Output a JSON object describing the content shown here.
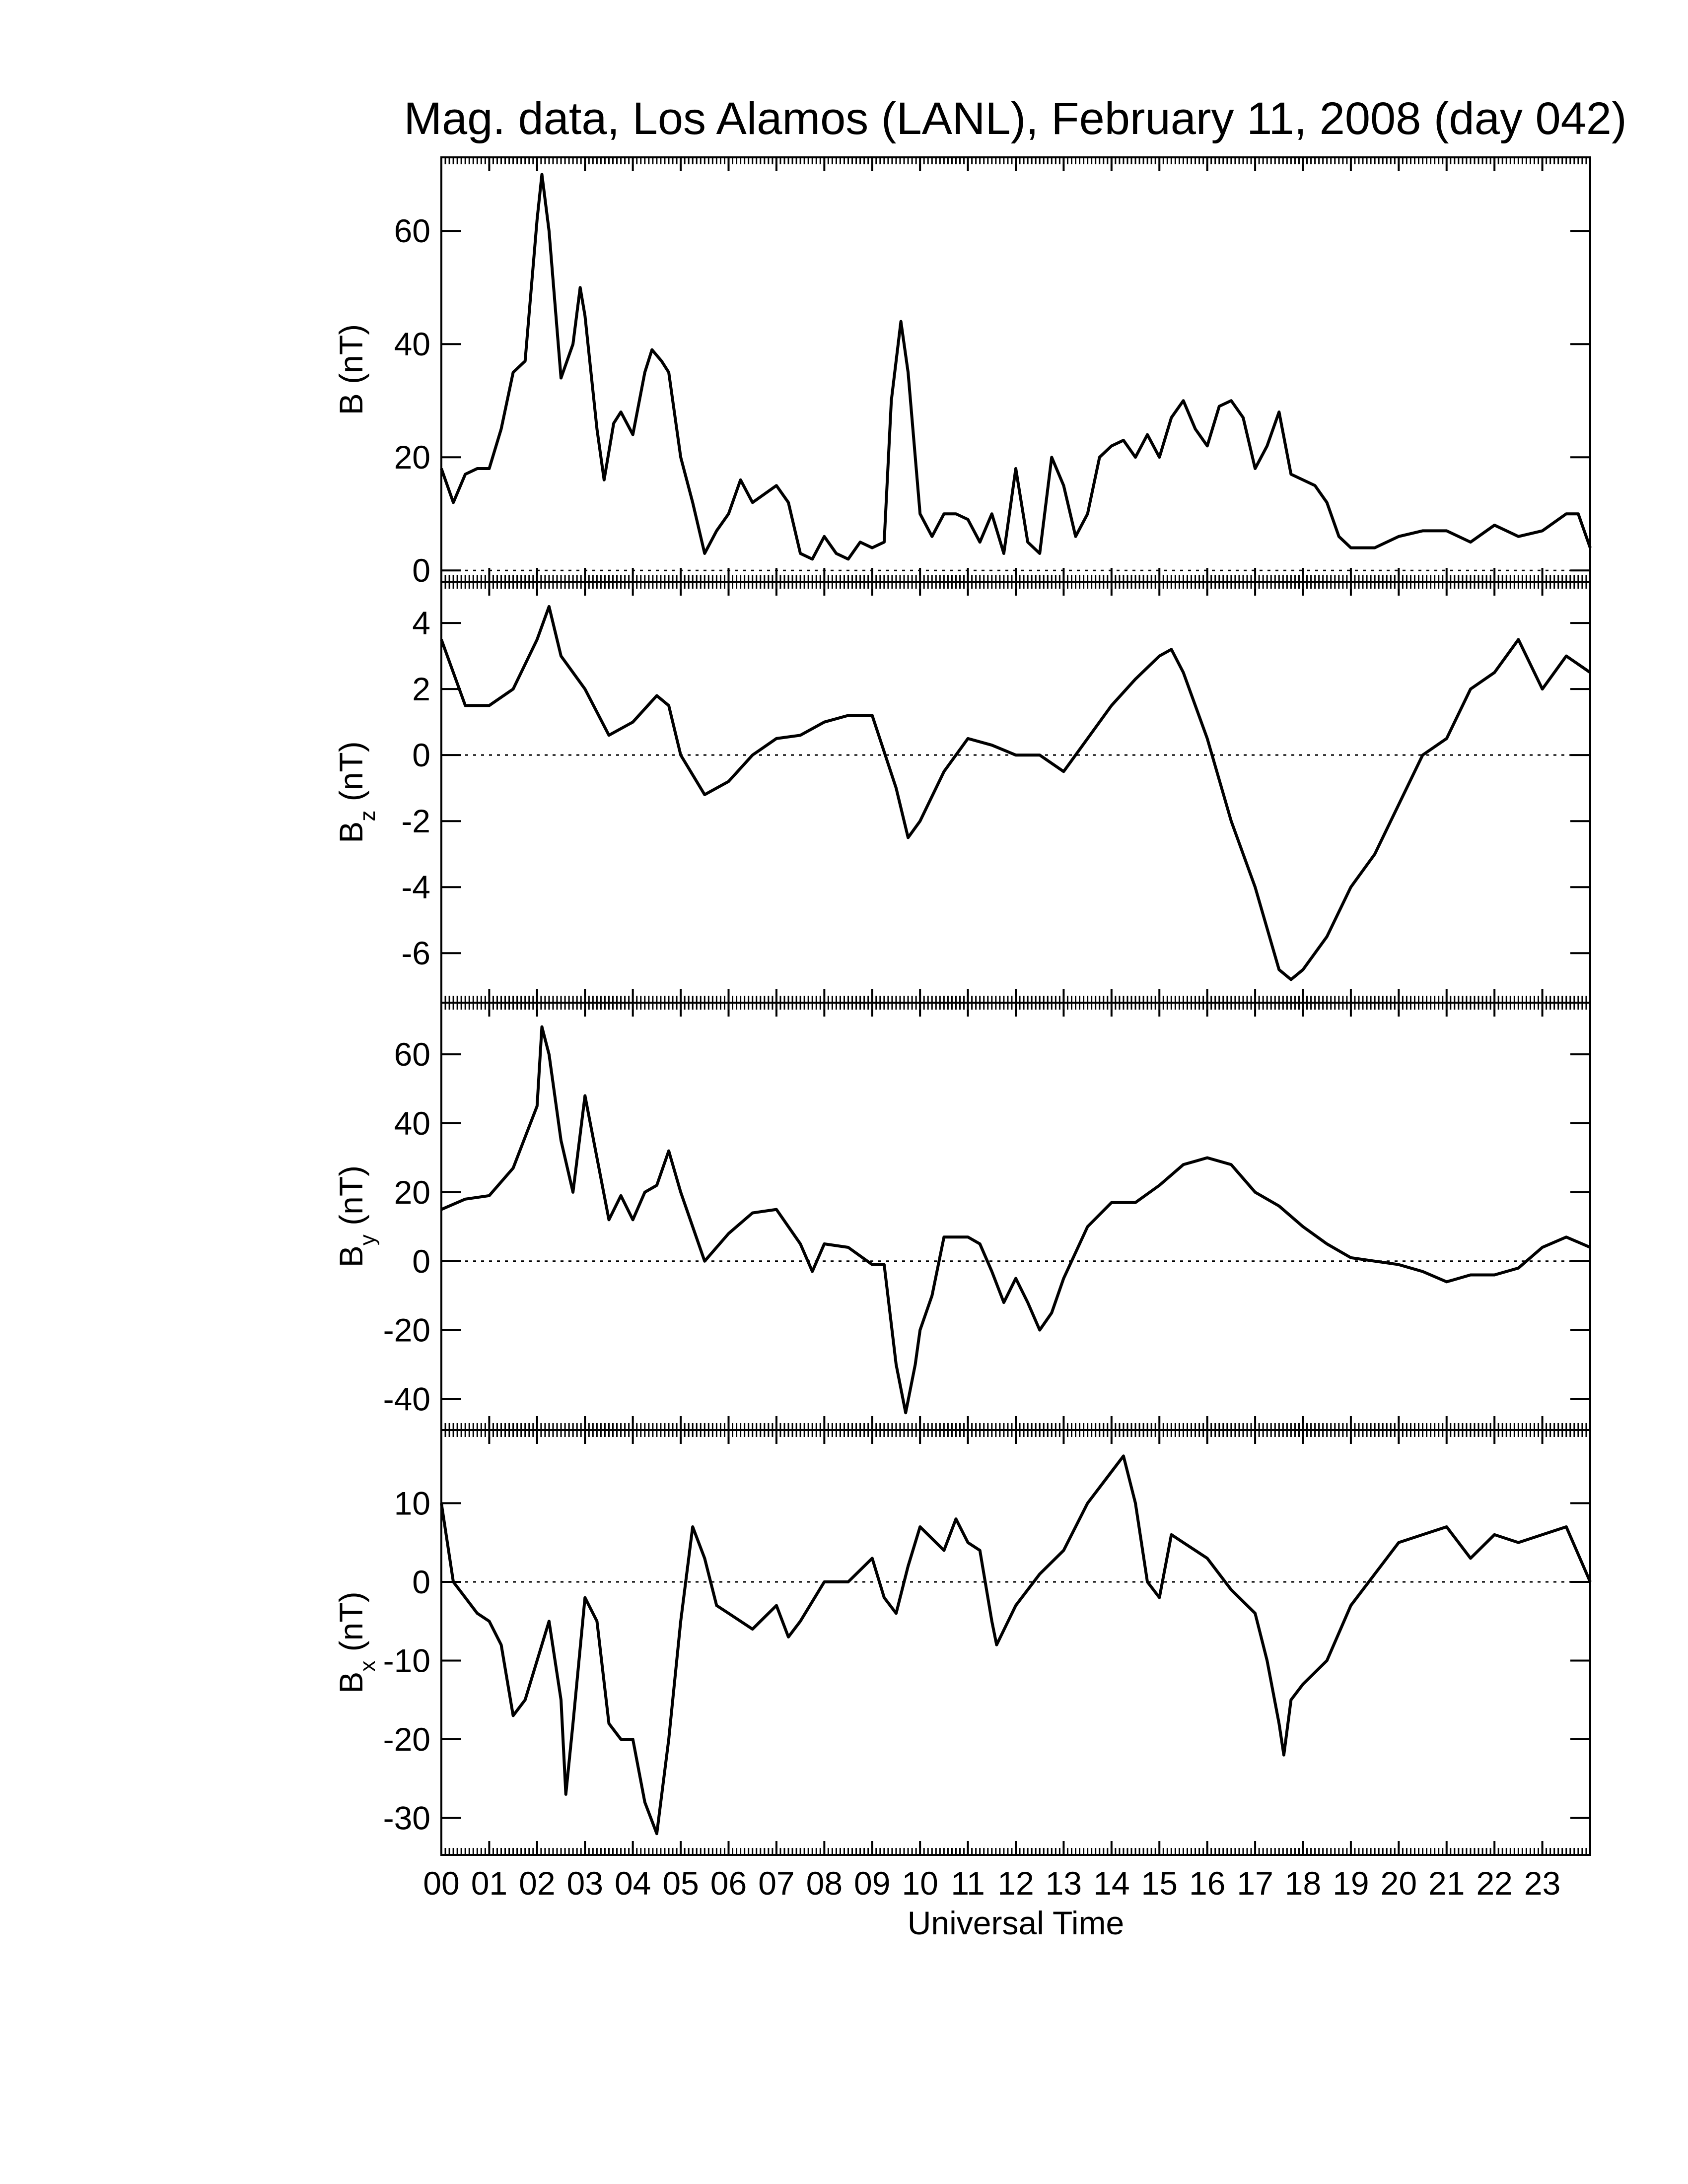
{
  "chart_data": [
    {
      "type": "line",
      "title": "Mag. data, Los Alamos (LANL), February 11, 2008 (day 042)",
      "ylabel": "B",
      "ylabel_unit": "(nT)",
      "color": "#000000",
      "xlim": [
        0,
        24
      ],
      "ylim": [
        -2,
        73
      ],
      "yticks": [
        0,
        20,
        40,
        60
      ],
      "x": [
        0,
        0.25,
        0.5,
        0.75,
        1,
        1.25,
        1.5,
        1.75,
        2,
        2.1,
        2.25,
        2.5,
        2.75,
        2.9,
        3,
        3.25,
        3.4,
        3.6,
        3.75,
        4,
        4.25,
        4.4,
        4.6,
        4.75,
        5,
        5.25,
        5.5,
        5.75,
        6,
        6.25,
        6.5,
        7,
        7.25,
        7.5,
        7.75,
        8,
        8.25,
        8.5,
        8.75,
        9,
        9.25,
        9.4,
        9.6,
        9.75,
        10,
        10.25,
        10.5,
        10.75,
        11,
        11.25,
        11.5,
        11.75,
        12,
        12.25,
        12.5,
        12.75,
        13,
        13.25,
        13.5,
        13.75,
        14,
        14.25,
        14.5,
        14.75,
        15,
        15.25,
        15.5,
        15.75,
        16,
        16.25,
        16.5,
        16.75,
        17,
        17.25,
        17.5,
        17.75,
        18,
        18.25,
        18.5,
        18.75,
        19,
        19.5,
        20,
        20.5,
        21,
        21.5,
        22,
        22.5,
        23,
        23.5,
        23.75,
        24
      ],
      "values": [
        18,
        12,
        17,
        18,
        18,
        25,
        35,
        37,
        62,
        70,
        60,
        34,
        40,
        50,
        45,
        25,
        16,
        26,
        28,
        24,
        35,
        39,
        37,
        35,
        20,
        12,
        3,
        7,
        10,
        16,
        12,
        15,
        12,
        3,
        2,
        6,
        3,
        2,
        5,
        4,
        5,
        30,
        44,
        35,
        10,
        6,
        10,
        10,
        9,
        5,
        10,
        3,
        18,
        5,
        3,
        20,
        15,
        6,
        10,
        20,
        22,
        23,
        20,
        24,
        20,
        27,
        30,
        25,
        22,
        29,
        30,
        27,
        18,
        22,
        28,
        17,
        16,
        15,
        12,
        6,
        4,
        4,
        6,
        7,
        7,
        5,
        8,
        6,
        7,
        10,
        10,
        4
      ]
    },
    {
      "type": "line",
      "ylabel": "B",
      "ylabel_sub": "z",
      "ylabel_unit": "(nT)",
      "color": "#000000",
      "xlim": [
        0,
        24
      ],
      "ylim": [
        -7.5,
        5.25
      ],
      "yticks": [
        -6,
        -4,
        -2,
        0,
        2,
        4
      ],
      "x": [
        0,
        0.5,
        1,
        1.5,
        2,
        2.25,
        2.5,
        3,
        3.5,
        4,
        4.5,
        4.75,
        5,
        5.5,
        6,
        6.5,
        7,
        7.5,
        8,
        8.5,
        9,
        9.5,
        9.75,
        10,
        10.5,
        11,
        11.5,
        12,
        12.5,
        13,
        13.5,
        14,
        14.5,
        15,
        15.25,
        15.5,
        16,
        16.5,
        17,
        17.5,
        17.75,
        18,
        18.5,
        19,
        19.5,
        20,
        20.5,
        21,
        21.5,
        22,
        22.5,
        23,
        23.5,
        24
      ],
      "values": [
        3.5,
        1.5,
        1.5,
        2,
        3.5,
        4.5,
        3,
        2,
        0.6,
        1,
        1.8,
        1.5,
        0,
        -1.2,
        -0.8,
        0,
        0.5,
        0.6,
        1,
        1.2,
        1.2,
        -1,
        -2.5,
        -2,
        -0.5,
        0.5,
        0.3,
        0,
        0,
        -0.5,
        0.5,
        1.5,
        2.3,
        3,
        3.2,
        2.5,
        0.5,
        -2,
        -4,
        -6.5,
        -6.8,
        -6.5,
        -5.5,
        -4,
        -3,
        -1.5,
        0,
        0.5,
        2,
        2.5,
        3.5,
        2,
        3,
        2.5
      ]
    },
    {
      "type": "line",
      "ylabel": "B",
      "ylabel_sub": "y",
      "ylabel_unit": "(nT)",
      "color": "#000000",
      "xlim": [
        0,
        24
      ],
      "ylim": [
        -49,
        75
      ],
      "yticks": [
        -40,
        -20,
        0,
        20,
        40,
        60
      ],
      "x": [
        0,
        0.5,
        1,
        1.5,
        2,
        2.1,
        2.25,
        2.5,
        2.75,
        3,
        3.25,
        3.5,
        3.75,
        4,
        4.25,
        4.5,
        4.75,
        5,
        5.5,
        6,
        6.5,
        7,
        7.5,
        7.75,
        8,
        8.5,
        9,
        9.25,
        9.5,
        9.7,
        9.9,
        10,
        10.25,
        10.5,
        11,
        11.25,
        11.5,
        11.75,
        12,
        12.25,
        12.5,
        12.75,
        13,
        13.5,
        14,
        14.5,
        15,
        15.5,
        16,
        16.5,
        17,
        17.5,
        18,
        18.5,
        19,
        19.5,
        20,
        20.5,
        21,
        21.5,
        22,
        22.5,
        23,
        23.5,
        24
      ],
      "values": [
        15,
        18,
        19,
        27,
        45,
        68,
        60,
        35,
        20,
        48,
        30,
        12,
        19,
        12,
        20,
        22,
        32,
        20,
        0,
        8,
        14,
        15,
        5,
        -3,
        5,
        4,
        -1,
        -1,
        -30,
        -44,
        -30,
        -20,
        -10,
        7,
        7,
        5,
        -3,
        -12,
        -5,
        -12,
        -20,
        -15,
        -5,
        10,
        17,
        17,
        22,
        28,
        30,
        28,
        20,
        16,
        10,
        5,
        1,
        0,
        -1,
        -3,
        -6,
        -4,
        -4,
        -2,
        4,
        7,
        4
      ]
    },
    {
      "type": "line",
      "ylabel": "B",
      "ylabel_sub": "x",
      "ylabel_unit": "(nT)",
      "xlabel": "Universal Time",
      "color": "#000000",
      "xlim": [
        0,
        24
      ],
      "ylim": [
        -34.7,
        19.3
      ],
      "yticks": [
        -30,
        -20,
        -10,
        0,
        10
      ],
      "xticks": [
        {
          "value": 0,
          "label": "00"
        },
        {
          "value": 1,
          "label": "01"
        },
        {
          "value": 2,
          "label": "02"
        },
        {
          "value": 3,
          "label": "03"
        },
        {
          "value": 4,
          "label": "04"
        },
        {
          "value": 5,
          "label": "05"
        },
        {
          "value": 6,
          "label": "06"
        },
        {
          "value": 7,
          "label": "07"
        },
        {
          "value": 8,
          "label": "08"
        },
        {
          "value": 9,
          "label": "09"
        },
        10,
        11,
        12,
        13,
        14,
        15,
        16,
        17,
        18,
        19,
        20,
        21,
        22,
        23
      ],
      "x": [
        0,
        0.25,
        0.5,
        0.75,
        1,
        1.25,
        1.5,
        1.75,
        2,
        2.25,
        2.5,
        2.6,
        2.75,
        3,
        3.25,
        3.5,
        3.75,
        4,
        4.25,
        4.5,
        4.75,
        5,
        5.25,
        5.5,
        5.75,
        6,
        6.5,
        7,
        7.25,
        7.5,
        8,
        8.5,
        9,
        9.25,
        9.5,
        9.75,
        10,
        10.5,
        10.75,
        11,
        11.25,
        11.5,
        11.6,
        12,
        12.5,
        13,
        13.5,
        14,
        14.25,
        14.5,
        14.75,
        15,
        15.25,
        15.5,
        16,
        16.5,
        17,
        17.25,
        17.5,
        17.6,
        17.75,
        18,
        18.5,
        19,
        19.5,
        20,
        20.5,
        21,
        21.5,
        22,
        22.5,
        23,
        23.5,
        24
      ],
      "values": [
        10,
        0,
        -2,
        -4,
        -5,
        -8,
        -17,
        -15,
        -10,
        -5,
        -15,
        -27,
        -18,
        -2,
        -5,
        -18,
        -20,
        -20,
        -28,
        -32,
        -20,
        -5,
        7,
        3,
        -3,
        -4,
        -6,
        -3,
        -7,
        -5,
        0,
        0,
        3,
        -2,
        -4,
        2,
        7,
        4,
        8,
        5,
        4,
        -5,
        -8,
        -3,
        1,
        4,
        10,
        14,
        16,
        10,
        0,
        -2,
        6,
        5,
        3,
        -1,
        -4,
        -10,
        -18,
        -22,
        -15,
        -13,
        -10,
        -3,
        1,
        5,
        6,
        7,
        3,
        6,
        5,
        6,
        7,
        0
      ]
    }
  ]
}
